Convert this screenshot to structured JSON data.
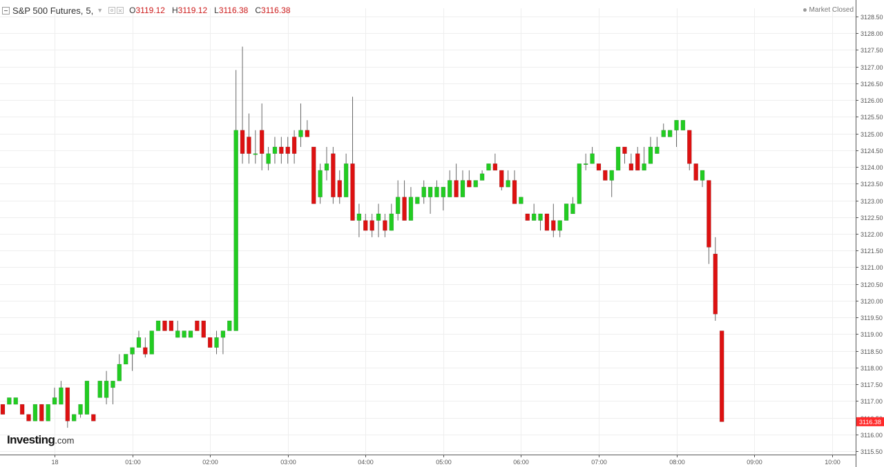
{
  "header": {
    "symbol": "S&P 500 Futures,",
    "interval": "5,",
    "ohlc": {
      "open_label": "O",
      "open": "3119.12",
      "high_label": "H",
      "high": "3119.12",
      "low_label": "L",
      "low": "3116.38",
      "close_label": "C",
      "close": "3116.38"
    },
    "market_status": "Market Closed"
  },
  "brand": {
    "name": "Investing",
    "suffix": ".com"
  },
  "colors": {
    "up": "#22cc22",
    "down": "#dd1111",
    "wick": "#666666",
    "grid": "#eeeeee",
    "axis_text": "#555555",
    "price_label_bg": "#ff2a2a"
  },
  "chart_data": {
    "type": "candlestick",
    "ylim": [
      3115.5,
      3128.5
    ],
    "y_ticks": [
      "3115.50",
      "3116.00",
      "3116.50",
      "3117.00",
      "3117.50",
      "3118.00",
      "3118.50",
      "3119.00",
      "3119.50",
      "3120.00",
      "3120.50",
      "3121.00",
      "3121.50",
      "3122.00",
      "3122.50",
      "3123.00",
      "3123.50",
      "3124.00",
      "3124.50",
      "3125.00",
      "3125.50",
      "3126.00",
      "3126.50",
      "3127.00",
      "3127.50",
      "3128.00",
      "3128.50"
    ],
    "x_ticks": [
      {
        "label": "18",
        "bar": 8
      },
      {
        "label": "01:00",
        "bar": 20
      },
      {
        "label": "02:00",
        "bar": 32
      },
      {
        "label": "03:00",
        "bar": 44
      },
      {
        "label": "04:00",
        "bar": 56
      },
      {
        "label": "05:00",
        "bar": 68
      },
      {
        "label": "06:00",
        "bar": 80
      },
      {
        "label": "07:00",
        "bar": 92
      },
      {
        "label": "08:00",
        "bar": 104
      },
      {
        "label": "09:00",
        "bar": 116
      },
      {
        "label": "10:00",
        "bar": 128
      }
    ],
    "last_price_label": "3116.38",
    "last_price": 3116.38,
    "candles": [
      [
        3116.9,
        3116.9,
        3116.6,
        3116.6
      ],
      [
        3116.9,
        3117.1,
        3116.9,
        3117.1
      ],
      [
        3116.9,
        3117.1,
        3116.9,
        3117.1
      ],
      [
        3116.9,
        3116.9,
        3116.6,
        3116.6
      ],
      [
        3116.6,
        3116.6,
        3116.4,
        3116.4
      ],
      [
        3116.4,
        3116.9,
        3116.4,
        3116.9
      ],
      [
        3116.9,
        3116.9,
        3116.4,
        3116.4
      ],
      [
        3116.4,
        3116.9,
        3116.4,
        3116.9
      ],
      [
        3116.9,
        3117.4,
        3116.9,
        3117.1
      ],
      [
        3116.9,
        3117.6,
        3116.9,
        3117.4
      ],
      [
        3117.4,
        3117.4,
        3116.2,
        3116.4
      ],
      [
        3116.4,
        3116.6,
        3116.4,
        3116.6
      ],
      [
        3116.6,
        3116.9,
        3116.5,
        3116.9
      ],
      [
        3116.6,
        3117.6,
        3116.6,
        3117.6
      ],
      [
        3116.6,
        3116.6,
        3116.4,
        3116.4
      ],
      [
        3117.1,
        3117.6,
        3117.1,
        3117.6
      ],
      [
        3117.1,
        3117.9,
        3116.9,
        3117.6
      ],
      [
        3117.4,
        3117.6,
        3116.9,
        3117.6
      ],
      [
        3117.6,
        3118.4,
        3117.6,
        3118.1
      ],
      [
        3118.1,
        3118.4,
        3118.1,
        3118.4
      ],
      [
        3118.4,
        3118.6,
        3117.9,
        3118.6
      ],
      [
        3118.6,
        3119.1,
        3118.6,
        3118.9
      ],
      [
        3118.6,
        3118.9,
        3118.3,
        3118.4
      ],
      [
        3118.4,
        3119.1,
        3118.4,
        3119.1
      ],
      [
        3119.1,
        3119.4,
        3119.1,
        3119.4
      ],
      [
        3119.4,
        3119.4,
        3119.1,
        3119.1
      ],
      [
        3119.4,
        3119.4,
        3119.1,
        3119.1
      ],
      [
        3118.9,
        3119.4,
        3118.9,
        3119.1
      ],
      [
        3118.9,
        3119.1,
        3118.9,
        3119.1
      ],
      [
        3118.9,
        3119.1,
        3118.9,
        3119.1
      ],
      [
        3119.4,
        3119.4,
        3119.1,
        3119.1
      ],
      [
        3119.4,
        3119.4,
        3118.9,
        3118.9
      ],
      [
        3118.9,
        3118.9,
        3118.6,
        3118.6
      ],
      [
        3118.6,
        3119.1,
        3118.4,
        3118.9
      ],
      [
        3118.9,
        3119.1,
        3118.4,
        3119.1
      ],
      [
        3119.1,
        3119.4,
        3119.1,
        3119.4
      ],
      [
        3119.1,
        3126.9,
        3119.1,
        3125.1
      ],
      [
        3125.1,
        3127.6,
        3124.1,
        3124.4
      ],
      [
        3124.9,
        3125.6,
        3124.1,
        3124.4
      ],
      [
        3124.4,
        3125.1,
        3124.1,
        3124.4
      ],
      [
        3125.1,
        3125.9,
        3123.9,
        3124.4
      ],
      [
        3124.1,
        3124.6,
        3123.9,
        3124.4
      ],
      [
        3124.4,
        3124.9,
        3124.1,
        3124.6
      ],
      [
        3124.6,
        3124.9,
        3124.1,
        3124.4
      ],
      [
        3124.6,
        3124.9,
        3124.1,
        3124.4
      ],
      [
        3124.9,
        3125.1,
        3124.1,
        3124.4
      ],
      [
        3124.9,
        3125.9,
        3124.6,
        3125.1
      ],
      [
        3125.1,
        3125.4,
        3124.9,
        3124.9
      ],
      [
        3124.6,
        3124.6,
        3122.9,
        3122.9
      ],
      [
        3123.1,
        3124.1,
        3122.9,
        3123.9
      ],
      [
        3123.9,
        3124.6,
        3123.6,
        3124.1
      ],
      [
        3124.4,
        3124.6,
        3122.9,
        3123.1
      ],
      [
        3123.6,
        3123.9,
        3122.9,
        3123.1
      ],
      [
        3123.1,
        3124.4,
        3123.1,
        3124.1
      ],
      [
        3124.1,
        3126.1,
        3122.4,
        3122.4
      ],
      [
        3122.4,
        3122.9,
        3121.9,
        3122.6
      ],
      [
        3122.4,
        3122.6,
        3122.1,
        3122.1
      ],
      [
        3122.4,
        3122.6,
        3121.9,
        3122.1
      ],
      [
        3122.4,
        3122.9,
        3121.9,
        3122.6
      ],
      [
        3122.4,
        3122.6,
        3121.9,
        3122.1
      ],
      [
        3122.1,
        3122.9,
        3122.1,
        3122.6
      ],
      [
        3122.6,
        3123.6,
        3122.4,
        3123.1
      ],
      [
        3123.1,
        3123.6,
        3122.4,
        3122.4
      ],
      [
        3122.4,
        3123.4,
        3122.4,
        3123.1
      ],
      [
        3122.9,
        3123.1,
        3122.9,
        3123.1
      ],
      [
        3123.1,
        3123.6,
        3122.9,
        3123.4
      ],
      [
        3123.1,
        3123.4,
        3122.6,
        3123.4
      ],
      [
        3123.1,
        3123.6,
        3123.1,
        3123.4
      ],
      [
        3123.1,
        3123.4,
        3122.7,
        3123.4
      ],
      [
        3123.1,
        3123.9,
        3123.1,
        3123.6
      ],
      [
        3123.6,
        3124.1,
        3123.1,
        3123.1
      ],
      [
        3123.1,
        3123.9,
        3123.1,
        3123.6
      ],
      [
        3123.6,
        3123.9,
        3123.4,
        3123.4
      ],
      [
        3123.4,
        3123.6,
        3123.4,
        3123.6
      ],
      [
        3123.6,
        3123.9,
        3123.6,
        3123.8
      ],
      [
        3123.9,
        3124.1,
        3123.9,
        3124.1
      ],
      [
        3124.1,
        3124.4,
        3123.9,
        3123.9
      ],
      [
        3123.9,
        3123.9,
        3123.3,
        3123.4
      ],
      [
        3123.4,
        3123.9,
        3123.4,
        3123.6
      ],
      [
        3123.6,
        3123.9,
        3122.9,
        3122.9
      ],
      [
        3122.9,
        3123.1,
        3122.9,
        3123.1
      ],
      [
        3122.6,
        3122.6,
        3122.4,
        3122.4
      ],
      [
        3122.4,
        3122.9,
        3122.4,
        3122.6
      ],
      [
        3122.4,
        3122.6,
        3122.1,
        3122.6
      ],
      [
        3122.6,
        3122.6,
        3122.1,
        3122.1
      ],
      [
        3122.4,
        3122.9,
        3121.9,
        3122.1
      ],
      [
        3122.1,
        3122.4,
        3121.9,
        3122.4
      ],
      [
        3122.4,
        3122.9,
        3122.4,
        3122.9
      ],
      [
        3122.6,
        3123.1,
        3122.6,
        3122.9
      ],
      [
        3122.9,
        3124.1,
        3122.9,
        3124.1
      ],
      [
        3124.1,
        3124.4,
        3123.9,
        3124.1
      ],
      [
        3124.1,
        3124.6,
        3124.1,
        3124.4
      ],
      [
        3124.1,
        3124.1,
        3123.9,
        3123.9
      ],
      [
        3123.9,
        3123.9,
        3123.6,
        3123.6
      ],
      [
        3123.6,
        3123.9,
        3123.1,
        3123.9
      ],
      [
        3123.9,
        3124.6,
        3123.9,
        3124.6
      ],
      [
        3124.6,
        3124.6,
        3124.1,
        3124.4
      ],
      [
        3124.1,
        3124.4,
        3123.9,
        3123.9
      ],
      [
        3124.4,
        3124.6,
        3123.9,
        3123.9
      ],
      [
        3123.9,
        3124.6,
        3123.9,
        3124.1
      ],
      [
        3124.1,
        3124.9,
        3124.1,
        3124.6
      ],
      [
        3124.4,
        3124.9,
        3124.4,
        3124.6
      ],
      [
        3124.9,
        3125.3,
        3124.9,
        3125.1
      ],
      [
        3124.9,
        3125.1,
        3124.9,
        3125.1
      ],
      [
        3125.1,
        3125.4,
        3124.6,
        3125.4
      ],
      [
        3125.1,
        3125.4,
        3125.1,
        3125.4
      ],
      [
        3125.1,
        3125.1,
        3123.9,
        3124.1
      ],
      [
        3124.1,
        3124.1,
        3123.6,
        3123.6
      ],
      [
        3123.6,
        3123.9,
        3123.4,
        3123.9
      ],
      [
        3123.6,
        3123.6,
        3121.1,
        3121.6
      ],
      [
        3121.4,
        3121.9,
        3119.4,
        3119.6
      ],
      [
        3119.1,
        3119.1,
        3116.38,
        3116.38
      ]
    ]
  }
}
